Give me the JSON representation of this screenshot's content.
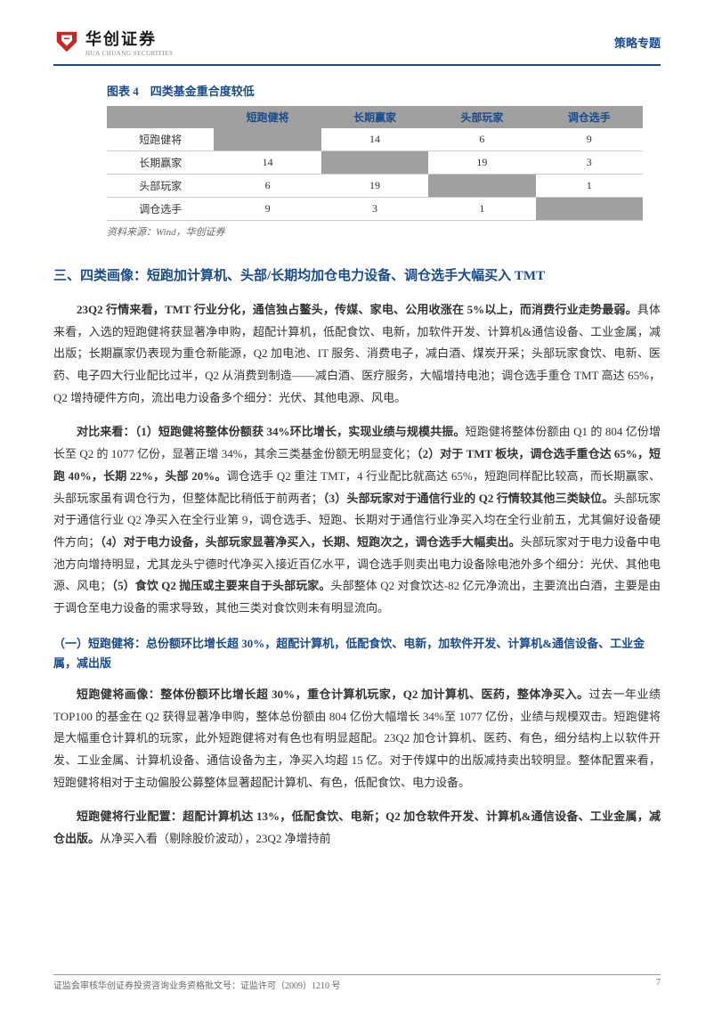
{
  "header": {
    "logo_cn": "华创证券",
    "logo_en": "HUA CHUANG SECURITIES",
    "category": "策略专题"
  },
  "table": {
    "title": "图表 4　四类基金重合度较低",
    "columns": [
      "",
      "短跑健将",
      "长期赢家",
      "头部玩家",
      "调仓选手"
    ],
    "rows": [
      {
        "label": "短跑健将",
        "cells": [
          "",
          "14",
          "6",
          "9"
        ],
        "diagonal": 0
      },
      {
        "label": "长期赢家",
        "cells": [
          "14",
          "",
          "19",
          "3"
        ],
        "diagonal": 1
      },
      {
        "label": "头部玩家",
        "cells": [
          "6",
          "19",
          "",
          "1"
        ],
        "diagonal": 2
      },
      {
        "label": "调仓选手",
        "cells": [
          "9",
          "3",
          "1",
          ""
        ],
        "diagonal": 3
      }
    ],
    "source": "资料来源：Wind，华创证券"
  },
  "section_heading": "三、四类画像：短跑加计算机、头部/长期均加仓电力设备、调仓选手大幅买入 TMT",
  "paragraphs": {
    "p1_bold": "23Q2 行情来看，TMT 行业分化，通信独占鳌头，传媒、家电、公用收涨在 5%以上，而消费行业走势最弱。",
    "p1_rest": "具体来看，入选的短跑健将获显著净申购，超配计算机，低配食饮、电新，加软件开发、计算机&通信设备、工业金属，减出版；长期赢家仍表现为重仓新能源，Q2 加电池、IT 服务、消费电子，减白酒、煤炭开采；头部玩家食饮、电新、医药、电子四大行业配比过半，Q2 从消费到制造——减白酒、医疗服务，大幅增持电池；调仓选手重仓 TMT 高达 65%，Q2 增持硬件方向，流出电力设备多个细分：光伏、其他电源、风电。",
    "p2_bold": "对比来看：（1）短跑健将整体份额获 34%环比增长，实现业绩与规模共振。",
    "p2_part1": "短跑健将整体份额由 Q1 的 804 亿份增长至 Q2 的 1077 亿份，显著正增 34%，其余三类基金份额无明显变化；",
    "p2_bold2": "（2）对于 TMT 板块，调仓选手重仓达 65%，短跑 40%，长期 22%，头部 20%。",
    "p2_part2": "调仓选手 Q2 重注 TMT，4 行业配比就高达 65%，短跑同样配比较高，而长期赢家、头部玩家虽有调仓行为，但整体配比稍低于前两者；",
    "p2_bold3": "（3）头部玩家对于通信行业的 Q2 行情较其他三类缺位。",
    "p2_part3": "头部玩家对于通信行业 Q2 净买入在全行业第 9，调仓选手、短跑、长期对于通信行业净买入均在全行业前五，尤其偏好设备硬件方向；",
    "p2_bold4": "（4）对于电力设备，头部玩家显著净买入，长期、短跑次之，调仓选手大幅卖出。",
    "p2_part4": "头部玩家对于电力设备中电池方向增持明显，尤其龙头宁德时代净买入接近百亿水平，调仓选手则卖出电力设备除电池外多个细分：光伏、其他电源、风电；",
    "p2_bold5": "（5）食饮 Q2 抛压或主要来自于头部玩家。",
    "p2_part5": "头部整体 Q2 对食饮达-82 亿元净流出，主要流出白酒，主要是由于调仓至电力设备的需求导致，其他三类对食饮则未有明显流向。"
  },
  "sub_heading": "（一）短跑健将：总份额环比增长超 30%，超配计算机，低配食饮、电新，加软件开发、计算机&通信设备、工业金属，减出版",
  "p3_bold": "短跑健将画像：整体份额环比增长超 30%，重仓计算机玩家，Q2 加计算机、医药，整体净买入。",
  "p3_rest": "过去一年业绩 TOP100 的基金在 Q2 获得显著净申购，整体总份额由 804 亿份大幅增长 34%至 1077 亿份，业绩与规模双击。短跑健将是大幅重仓计算机的玩家，此外短跑健将对有色也有明显超配。23Q2 加仓计算机、医药、有色，细分结构上以软件开发、工业金属、计算机设备、通信设备为主，净买入均超 15 亿。对于传媒中的出版减持卖出较明显。整体配置来看，短跑健将相对于主动偏股公募整体显著超配计算机、有色，低配食饮、电力设备。",
  "p4_bold": "短跑健将行业配置：超配计算机达 13%，低配食饮、电新；Q2 加仓软件开发、计算机&通信设备、工业金属，减仓出版。",
  "p4_rest": "从净买入看（剔除股价波动），23Q2 净增持前",
  "footer": {
    "left": "证监会审核华创证券投资咨询业务资格批文号：证监许可（2009）1210 号",
    "page": "7"
  },
  "colors": {
    "primary": "#1a4c8b",
    "header_bg": "#a0a0a0",
    "red": "#c62828"
  }
}
